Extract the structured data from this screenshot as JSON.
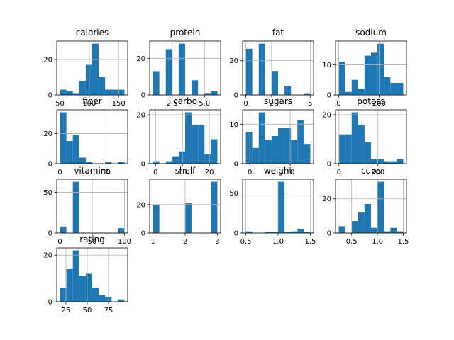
{
  "chart_data": [
    {
      "type": "histogram",
      "title": "calories",
      "color": "#1f77b4",
      "grid": true,
      "bins": [
        50,
        61,
        72,
        83,
        94,
        105,
        116,
        127,
        138,
        149,
        160
      ],
      "values": [
        3,
        2,
        1,
        8,
        17,
        29,
        10,
        3,
        3,
        3
      ],
      "xlim": [
        44.5,
        165.5
      ],
      "xticks": [
        50,
        100,
        150
      ],
      "ylim": [
        0,
        30.45
      ],
      "yticks": [
        0,
        20
      ]
    },
    {
      "type": "histogram",
      "title": "protein",
      "color": "#1f77b4",
      "grid": true,
      "bins": [
        1,
        1.5,
        2,
        2.5,
        3,
        3.5,
        4,
        4.5,
        5,
        5.5,
        6
      ],
      "values": [
        13,
        0,
        25,
        0,
        28,
        0,
        8,
        0,
        1,
        2
      ],
      "xlim": [
        0.75,
        6.25
      ],
      "xticks": [
        2.5,
        {
          "value": 5,
          "label": "5.0"
        }
      ],
      "ylim": [
        0,
        29.4
      ],
      "yticks": [
        0,
        20
      ]
    },
    {
      "type": "histogram",
      "title": "fat",
      "color": "#1f77b4",
      "grid": true,
      "bins": [
        0,
        0.5,
        1,
        1.5,
        2,
        2.5,
        3,
        3.5,
        4,
        4.5,
        5
      ],
      "values": [
        27,
        0,
        30,
        0,
        14,
        0,
        5,
        0,
        0,
        1
      ],
      "xlim": [
        -0.25,
        5.25
      ],
      "xticks": [
        0,
        2,
        5
      ],
      "ylim": [
        0,
        31.5
      ],
      "yticks": [
        0,
        20
      ]
    },
    {
      "type": "histogram",
      "title": "sodium",
      "color": "#1f77b4",
      "grid": true,
      "bins": [
        0,
        32,
        64,
        96,
        128,
        160,
        192,
        224,
        256,
        288,
        320
      ],
      "values": [
        11,
        1,
        5,
        2,
        13,
        14,
        17,
        6,
        4,
        4
      ],
      "xlim": [
        -16,
        336
      ],
      "xticks": [
        0,
        200
      ],
      "ylim": [
        0,
        17.85
      ],
      "yticks": [
        0,
        10
      ]
    },
    {
      "type": "histogram",
      "title": "fiber",
      "color": "#1f77b4",
      "grid": true,
      "bins": [
        0,
        1.4,
        2.8,
        4.2,
        5.6,
        7,
        8.4,
        9.8,
        11.2,
        12.6,
        14
      ],
      "values": [
        34,
        15,
        19,
        4,
        1,
        0,
        0,
        1,
        0,
        1
      ],
      "xlim": [
        -0.7,
        14.7
      ],
      "xticks": [
        0,
        10
      ],
      "ylim": [
        0,
        35.7
      ],
      "yticks": [
        0,
        20
      ]
    },
    {
      "type": "histogram",
      "title": "carbo",
      "color": "#1f77b4",
      "grid": true,
      "bins": [
        -1,
        1.4,
        3.8,
        6.2,
        8.6,
        11,
        13.4,
        15.8,
        18.2,
        20.6,
        23
      ],
      "values": [
        1,
        0,
        1,
        3,
        5,
        21,
        16,
        16,
        4,
        10
      ],
      "xlim": [
        -2.2,
        24.2
      ],
      "xticks": [
        0,
        10,
        20
      ],
      "ylim": [
        0,
        22.05
      ],
      "yticks": [
        0,
        20
      ]
    },
    {
      "type": "histogram",
      "title": "sugars",
      "color": "#1f77b4",
      "grid": true,
      "bins": [
        -1,
        0.6,
        2.2,
        3.8,
        5.4,
        7,
        8.6,
        10.2,
        11.8,
        13.4,
        15
      ],
      "values": [
        8,
        4,
        13,
        6,
        7,
        9,
        9,
        6,
        11,
        5
      ],
      "xlim": [
        -1.8,
        15.8
      ],
      "xticks": [
        0,
        10
      ],
      "ylim": [
        0,
        13.65
      ],
      "yticks": [
        0,
        10
      ]
    },
    {
      "type": "histogram",
      "title": "potass",
      "color": "#1f77b4",
      "grid": true,
      "bins": [
        -1,
        32.1,
        65.2,
        98.3,
        131.4,
        164.5,
        197.6,
        230.7,
        263.8,
        296.9,
        330
      ],
      "values": [
        12,
        12,
        21,
        16,
        9,
        2,
        2,
        1,
        1,
        2
      ],
      "xlim": [
        -17.55,
        346.55
      ],
      "xticks": [
        0,
        200
      ],
      "ylim": [
        0,
        22.05
      ],
      "yticks": [
        0,
        20
      ]
    },
    {
      "type": "histogram",
      "title": "vitamins",
      "color": "#1f77b4",
      "grid": true,
      "bins": [
        0,
        10,
        20,
        30,
        40,
        50,
        60,
        70,
        80,
        90,
        100
      ],
      "values": [
        8,
        0,
        63,
        0,
        0,
        0,
        0,
        0,
        0,
        6
      ],
      "xlim": [
        -5,
        105
      ],
      "xticks": [
        0,
        50,
        100
      ],
      "ylim": [
        0,
        66.15
      ],
      "yticks": [
        0,
        50
      ]
    },
    {
      "type": "histogram",
      "title": "shelf",
      "color": "#1f77b4",
      "grid": true,
      "bins": [
        1,
        1.2,
        1.4,
        1.6,
        1.8,
        2,
        2.2,
        2.4,
        2.6,
        2.8,
        3
      ],
      "values": [
        20,
        0,
        0,
        0,
        0,
        21,
        0,
        0,
        0,
        36
      ],
      "xlim": [
        0.9,
        3.1
      ],
      "xticks": [
        1,
        2,
        3
      ],
      "ylim": [
        0,
        37.8
      ],
      "yticks": [
        0,
        20
      ]
    },
    {
      "type": "histogram",
      "title": "weight",
      "color": "#1f77b4",
      "grid": true,
      "bins": [
        0.5,
        0.6,
        0.7,
        0.8,
        0.9,
        1,
        1.1,
        1.2,
        1.3,
        1.4,
        1.5
      ],
      "values": [
        2,
        0,
        0,
        1,
        1,
        64,
        1,
        2,
        5,
        1
      ],
      "xlim": [
        0.45,
        1.55
      ],
      "xticks": [
        0.5,
        {
          "value": 1,
          "label": "1.0"
        },
        1.5
      ],
      "ylim": [
        0,
        67.2
      ],
      "yticks": [
        0,
        50
      ]
    },
    {
      "type": "histogram",
      "title": "cups",
      "color": "#1f77b4",
      "grid": true,
      "bins": [
        0.25,
        0.375,
        0.5,
        0.625,
        0.75,
        0.875,
        1,
        1.125,
        1.25,
        1.375,
        1.5
      ],
      "values": [
        4,
        0,
        7,
        12,
        17,
        3,
        30,
        1,
        3,
        1
      ],
      "xlim": [
        0.1875,
        1.5625
      ],
      "xticks": [
        0.5,
        {
          "value": 1,
          "label": "1.0"
        },
        1.5
      ],
      "ylim": [
        0,
        31.5
      ],
      "yticks": [
        0,
        20
      ]
    },
    {
      "type": "histogram",
      "title": "rating",
      "color": "#1f77b4",
      "grid": true,
      "bins": [
        18.04,
        25.61,
        33.17,
        40.74,
        48.3,
        55.87,
        63.44,
        71,
        78.57,
        86.13,
        93.7
      ],
      "values": [
        6,
        14,
        22,
        11,
        12,
        6,
        3,
        2,
        0,
        1
      ],
      "xlim": [
        14.26,
        97.48
      ],
      "xticks": [
        25,
        50,
        75
      ],
      "ylim": [
        0,
        23.1
      ],
      "yticks": [
        0,
        20
      ]
    }
  ]
}
